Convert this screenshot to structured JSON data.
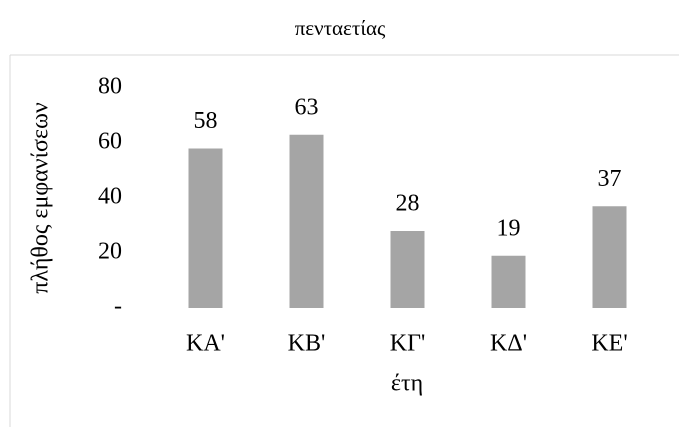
{
  "chart_data": {
    "type": "bar",
    "title": "πενταετίας",
    "y_label": "πλήθος εμφανίσεων",
    "x_label": "έτη",
    "categories": [
      "ΚΑ'",
      "ΚΒ'",
      "ΚΓ'",
      "ΚΔ'",
      "ΚΕ'"
    ],
    "values": [
      58,
      63,
      28,
      19,
      37
    ],
    "color": "#a5a5a5",
    "ylim": [
      0,
      80
    ],
    "yticks": [
      {
        "value": 0,
        "label": "-"
      },
      20,
      40,
      60,
      80
    ],
    "grid": false
  }
}
